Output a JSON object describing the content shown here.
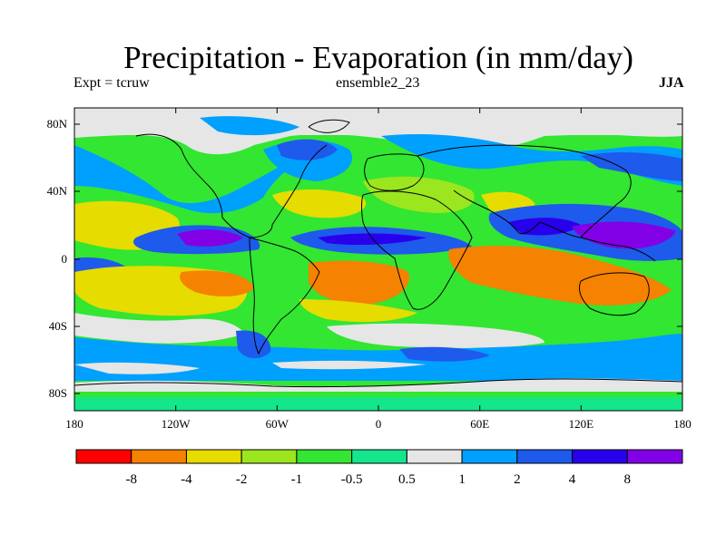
{
  "title": "Precipitation - Evaporation (in mm/day)",
  "subtitle_left": "Expt = tcruw",
  "subtitle_center": "ensemble2_23",
  "subtitle_right": "JJA",
  "map": {
    "lon_labels": [
      "180",
      "120W",
      "60W",
      "0",
      "60E",
      "120E",
      "180"
    ],
    "lat_labels": [
      "80N",
      "40N",
      "0",
      "40S",
      "80S"
    ]
  },
  "colorbar": {
    "colors": [
      "#ff0000",
      "#f58200",
      "#e6dc00",
      "#9be61e",
      "#32e632",
      "#14e68c",
      "#e6e6e6",
      "#00a0ff",
      "#1e5aeb",
      "#2800eb",
      "#8200e6"
    ],
    "labels": [
      "-8",
      "-4",
      "-2",
      "-1",
      "-0.5",
      "0.5",
      "1",
      "2",
      "4",
      "8"
    ]
  },
  "palette": {
    "ocean_dry": "#e6dc00",
    "very_dry": "#f58200",
    "moist": "#14e68c",
    "neutral": "#e6e6e6",
    "wet": "#00a0ff",
    "wetter": "#1e5aeb",
    "very_wet": "#2800eb",
    "extreme_wet": "#8200e6"
  }
}
